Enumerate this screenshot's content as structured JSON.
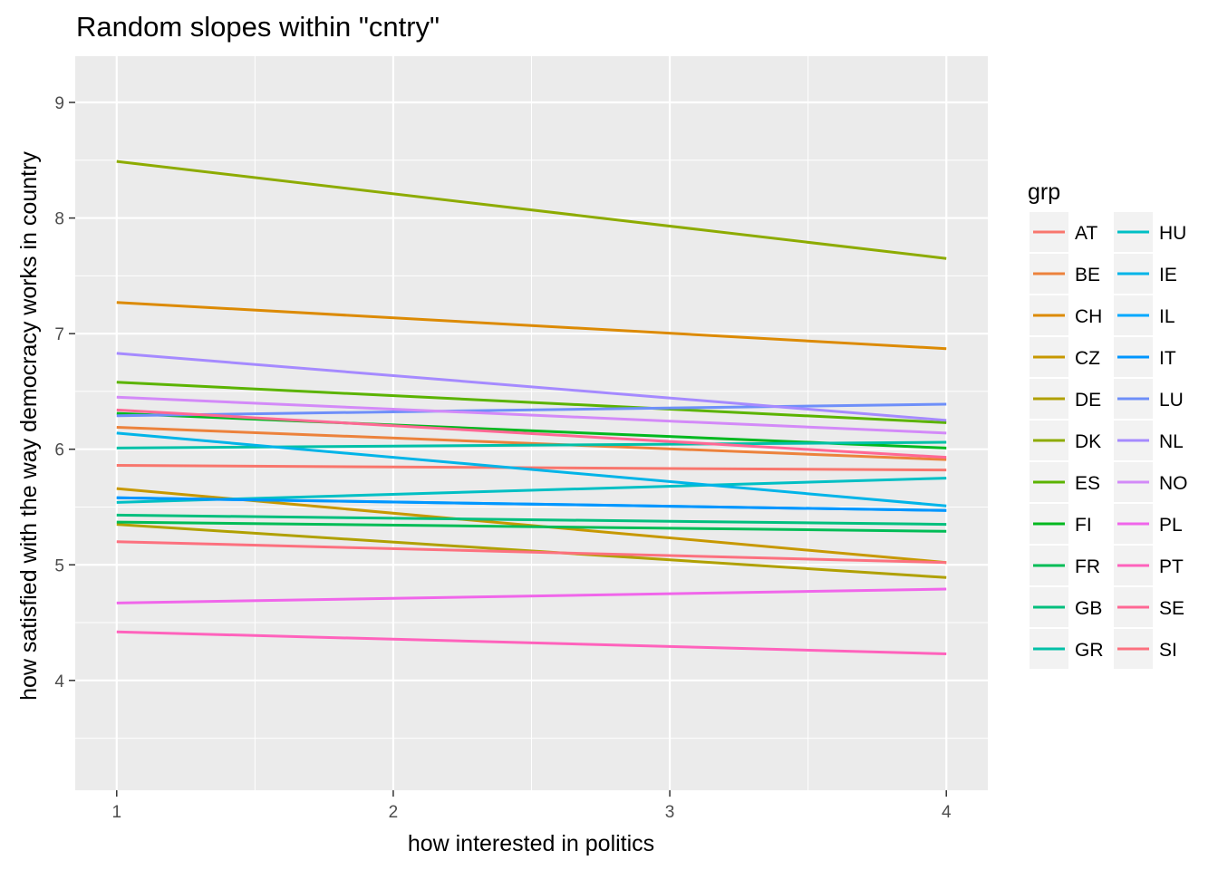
{
  "chart_data": {
    "type": "line",
    "title": "Random slopes within \"cntry\"",
    "xlabel": "how interested in politics",
    "ylabel": "how satisfied with the way democracy works in country",
    "xlim": [
      0.85,
      4.15
    ],
    "ylim": [
      3.05,
      9.4
    ],
    "x_ticks": [
      1,
      2,
      3,
      4
    ],
    "y_ticks": [
      4,
      5,
      6,
      7,
      8,
      9
    ],
    "grid": true,
    "legend_title": "grp",
    "legend_position": "right",
    "x": [
      1,
      4
    ],
    "series": [
      {
        "name": "AT",
        "color": "#F8766D",
        "values": [
          5.86,
          5.82
        ]
      },
      {
        "name": "BE",
        "color": "#EC823C",
        "values": [
          6.19,
          5.91
        ]
      },
      {
        "name": "CH",
        "color": "#DC8A03",
        "values": [
          7.27,
          6.87
        ]
      },
      {
        "name": "CZ",
        "color": "#C79800",
        "values": [
          5.66,
          5.02
        ]
      },
      {
        "name": "DE",
        "color": "#B0A000",
        "values": [
          5.35,
          4.89
        ]
      },
      {
        "name": "DK",
        "color": "#8DAB00",
        "values": [
          8.49,
          7.65
        ]
      },
      {
        "name": "ES",
        "color": "#5BB300",
        "values": [
          6.58,
          6.23
        ]
      },
      {
        "name": "FI",
        "color": "#00B81F",
        "values": [
          6.31,
          6.01
        ]
      },
      {
        "name": "FR",
        "color": "#00BC56",
        "values": [
          5.37,
          5.29
        ]
      },
      {
        "name": "GB",
        "color": "#00BF7D",
        "values": [
          5.43,
          5.35
        ]
      },
      {
        "name": "GR",
        "color": "#00C0A7",
        "values": [
          6.01,
          6.06
        ]
      },
      {
        "name": "HU",
        "color": "#00BFC4",
        "values": [
          5.54,
          5.75
        ]
      },
      {
        "name": "IE",
        "color": "#00B4E8",
        "values": [
          6.14,
          5.51
        ]
      },
      {
        "name": "IL",
        "color": "#00A8FF",
        "values": [
          5.58,
          5.47
        ]
      },
      {
        "name": "IT",
        "color": "#0096FF",
        "values": [
          5.58,
          5.47
        ]
      },
      {
        "name": "LU",
        "color": "#6E8FF9",
        "values": [
          6.29,
          6.39
        ]
      },
      {
        "name": "NL",
        "color": "#A58AFF",
        "values": [
          6.83,
          6.25
        ]
      },
      {
        "name": "NO",
        "color": "#D38AF8",
        "values": [
          6.45,
          6.14
        ]
      },
      {
        "name": "PL",
        "color": "#F066EA",
        "values": [
          4.67,
          4.79
        ]
      },
      {
        "name": "PT",
        "color": "#FF62BC",
        "values": [
          4.42,
          4.23
        ]
      },
      {
        "name": "SE",
        "color": "#FF6894",
        "values": [
          6.34,
          5.93
        ]
      },
      {
        "name": "SI",
        "color": "#FC717F",
        "values": [
          5.2,
          5.02
        ]
      }
    ]
  }
}
